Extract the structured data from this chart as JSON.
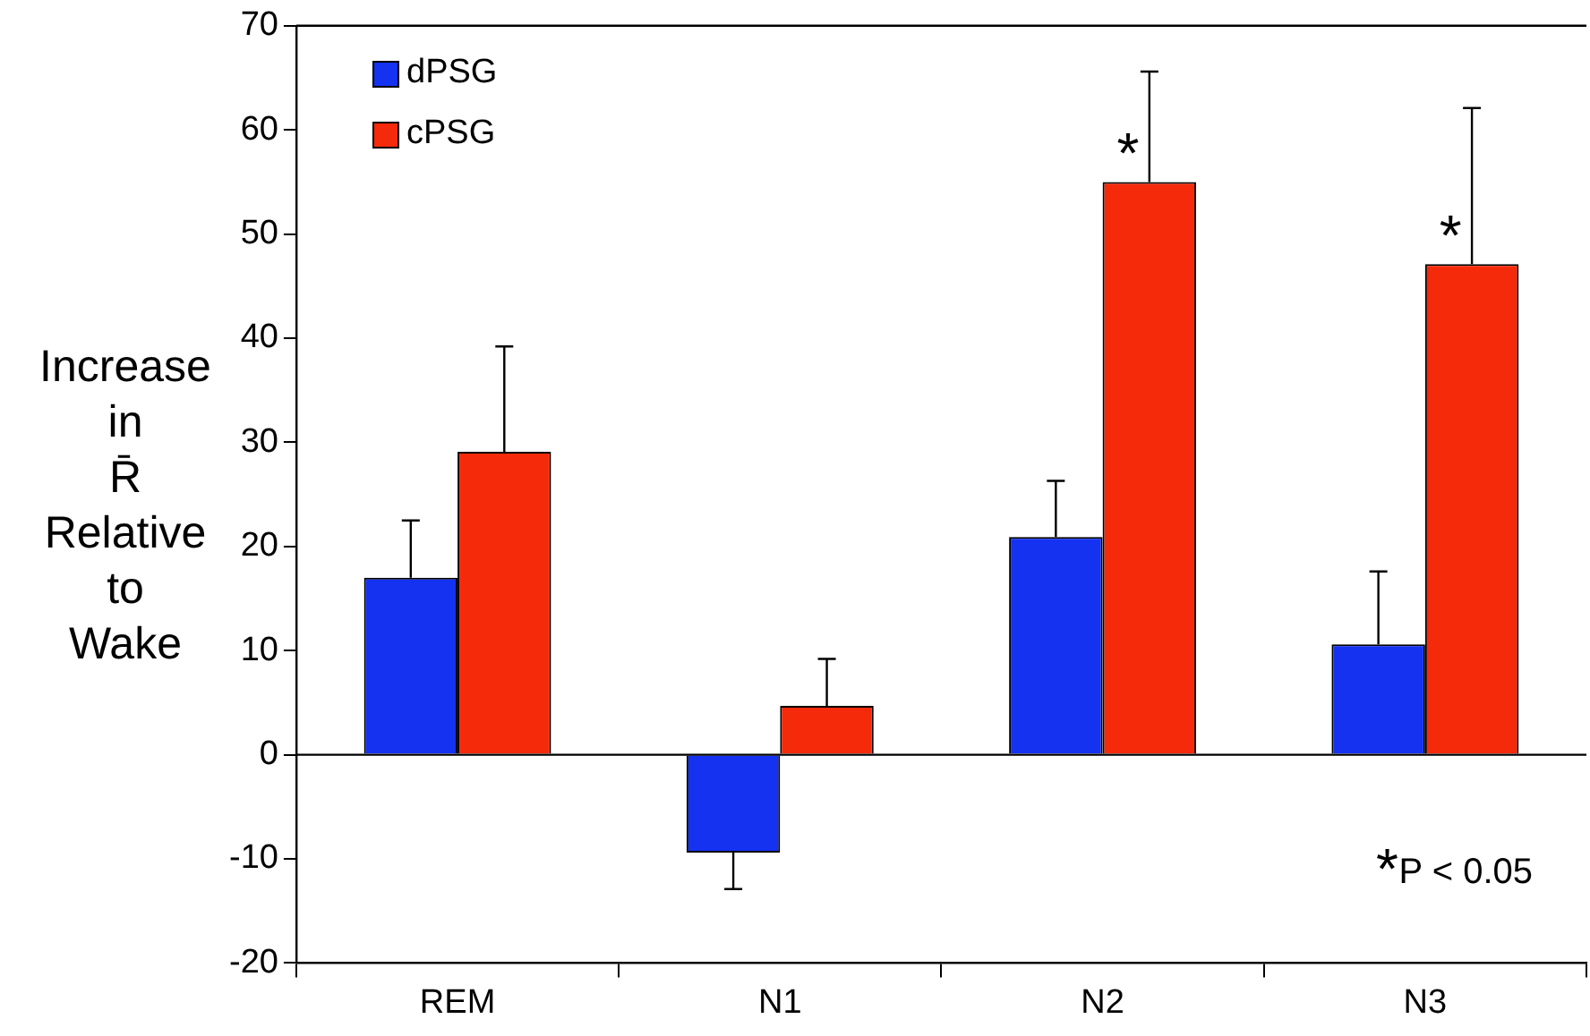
{
  "chart_data": {
    "type": "bar",
    "ylabel": "Increase in R̄ Relative to Wake",
    "categories": [
      "REM",
      "N1",
      "N2",
      "N3"
    ],
    "series": [
      {
        "name": "dPSG",
        "color": "#1432f0",
        "values": [
          17,
          -9.4,
          20.9,
          10.6
        ],
        "errors": [
          [
            17,
            22.5
          ],
          [
            -12.9,
            -9.4
          ],
          [
            20.9,
            26.3
          ],
          [
            10.6,
            17.6
          ]
        ]
      },
      {
        "name": "cPSG",
        "color": "#f52a0a",
        "values": [
          29.1,
          4.7,
          55,
          47.1
        ],
        "errors": [
          [
            29.1,
            39.2
          ],
          [
            4.7,
            9.2
          ],
          [
            55,
            65.6
          ],
          [
            47.1,
            62.1
          ]
        ]
      }
    ],
    "ylim": [
      -20,
      70
    ],
    "yticks": [
      -20,
      -10,
      0,
      10,
      20,
      30,
      40,
      50,
      60,
      70
    ],
    "grid": false,
    "legend": "top left",
    "ref_lines": [
      {
        "axis": "y",
        "value": 0
      }
    ],
    "annotations": [
      {
        "text": "*",
        "x": "N2",
        "y": 55
      },
      {
        "text": "*",
        "x": "N3",
        "y": 47.1
      },
      "*P < 0.05"
    ]
  }
}
